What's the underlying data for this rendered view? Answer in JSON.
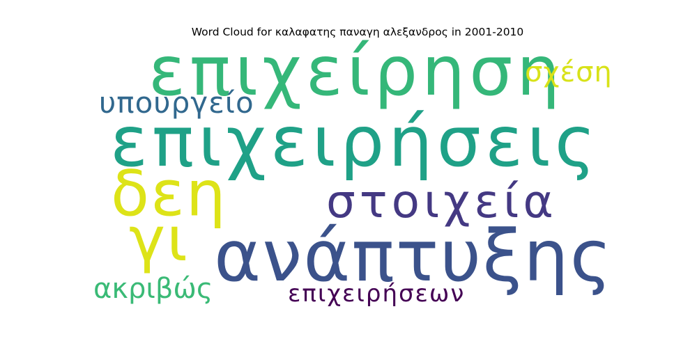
{
  "title": "Word Cloud for καλαφατης παναγη αλεξανδρος in 2001-2010",
  "colors": {
    "background": "#ffffff",
    "title": "#000000"
  },
  "words": [
    {
      "text": "επιχείρηση",
      "color": "#35b779"
    },
    {
      "text": "σχέση",
      "color": "#d8e219"
    },
    {
      "text": "υπουργείο",
      "color": "#31688e"
    },
    {
      "text": "επιχειρήσεις",
      "color": "#1fa187"
    },
    {
      "text": "δεη",
      "color": "#dde318"
    },
    {
      "text": "στοιχεία",
      "color": "#443983"
    },
    {
      "text": "γι",
      "color": "#dde318"
    },
    {
      "text": "ανάπτυξης",
      "color": "#3b528b"
    },
    {
      "text": "ακριβώς",
      "color": "#3aba76"
    },
    {
      "text": "επιχειρήσεων",
      "color": "#440154"
    }
  ]
}
